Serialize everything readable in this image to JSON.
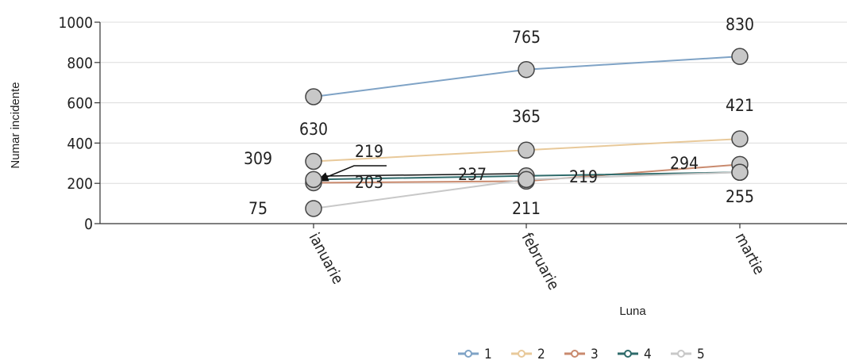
{
  "chart_data": {
    "type": "line",
    "categories": [
      "ianuarie",
      "februarie",
      "martie"
    ],
    "series": [
      {
        "name": "1",
        "color": "#7fa3c6",
        "values": [
          630,
          765,
          830
        ]
      },
      {
        "name": "2",
        "color": "#e8c99a",
        "values": [
          309,
          365,
          421
        ]
      },
      {
        "name": "3",
        "color": "#c98a6e",
        "values": [
          203,
          211,
          294
        ]
      },
      {
        "name": "4",
        "color": "#2f6b6b",
        "values": [
          219,
          237,
          255
        ]
      },
      {
        "name": "5",
        "color": "#c8c8c8",
        "values": [
          75,
          219,
          255
        ]
      }
    ],
    "xlabel": "Luna",
    "ylabel": "Numar incidente",
    "ylim": [
      0,
      1000
    ],
    "yticks": [
      "0",
      "200",
      "400",
      "600",
      "800",
      "1000"
    ],
    "grid": true,
    "legend_position": "bottom",
    "data_labels": [
      {
        "series": "1",
        "category": "ianuarie",
        "text": "630"
      },
      {
        "series": "1",
        "category": "februarie",
        "text": "765"
      },
      {
        "series": "1",
        "category": "martie",
        "text": "830"
      },
      {
        "series": "2",
        "category": "ianuarie",
        "text": "309"
      },
      {
        "series": "2",
        "category": "februarie",
        "text": "365"
      },
      {
        "series": "2",
        "category": "martie",
        "text": "421"
      },
      {
        "series": "3",
        "category": "ianuarie",
        "text": "203"
      },
      {
        "series": "3",
        "category": "februarie",
        "text": "211"
      },
      {
        "series": "3",
        "category": "martie",
        "text": "294"
      },
      {
        "series": "4",
        "category": "ianuarie",
        "text": "219"
      },
      {
        "series": "4",
        "category": "februarie",
        "text": "237"
      },
      {
        "series": "4",
        "category": "martie",
        "text": "255"
      },
      {
        "series": "5",
        "category": "ianuarie",
        "text": "75"
      },
      {
        "series": "5",
        "category": "februarie",
        "text": "219"
      }
    ]
  }
}
